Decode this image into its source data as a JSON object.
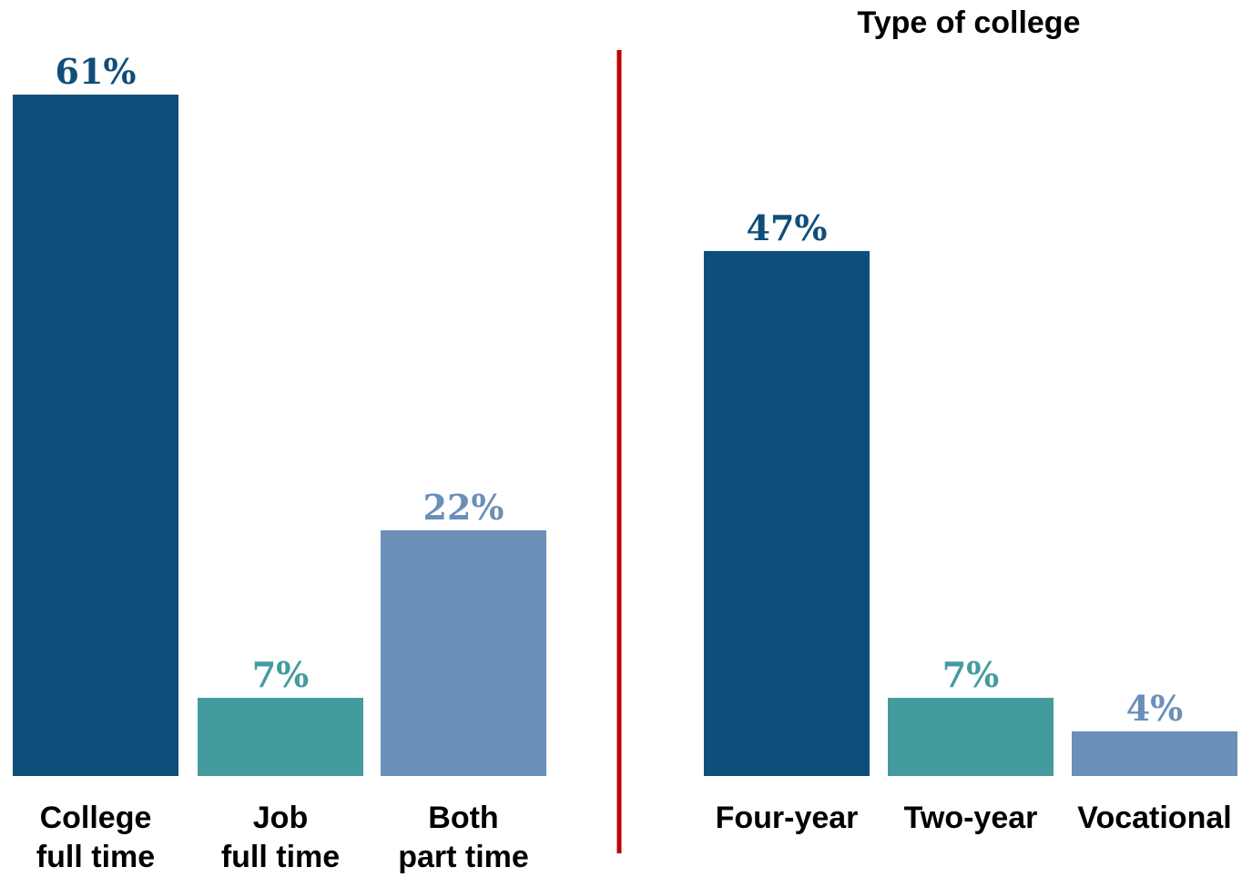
{
  "chart_data": [
    {
      "type": "bar",
      "title": "",
      "categories": [
        [
          "College",
          "full time"
        ],
        [
          "Job",
          "full time"
        ],
        [
          "Both",
          "part time"
        ]
      ],
      "values": [
        61,
        7,
        22
      ],
      "value_labels": [
        "61%",
        "7%",
        "22%"
      ],
      "colors": [
        "#0f4e7a",
        "#439b9e",
        "#6a8fb8"
      ],
      "ylim": [
        0,
        61
      ]
    },
    {
      "type": "bar",
      "title": "Type of college",
      "categories": [
        [
          "Four-year"
        ],
        [
          "Two-year"
        ],
        [
          "Vocational"
        ]
      ],
      "values": [
        47,
        7,
        4
      ],
      "value_labels": [
        "47%",
        "7%",
        "4%"
      ],
      "colors": [
        "#0f4e7a",
        "#439b9e",
        "#6a8fb8"
      ],
      "ylim": [
        0,
        61
      ]
    }
  ],
  "divider_color": "#c00000"
}
